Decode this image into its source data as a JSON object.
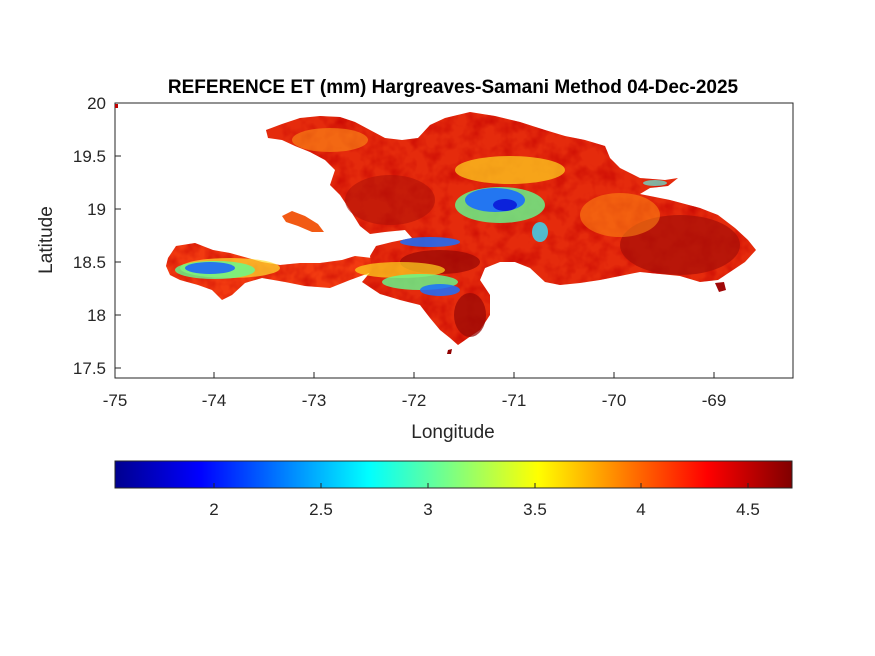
{
  "map": {
    "title": "REFERENCE ET (mm) Hargreaves-Samani Method  04-Dec-2025",
    "xlabel": "Longitude",
    "ylabel": "Latitude",
    "xlim": [
      -75,
      -68.2
    ],
    "ylim": [
      17.4,
      20
    ],
    "xticks": [
      "-75",
      "-74",
      "-73",
      "-72",
      "-71",
      "-70",
      "-69"
    ],
    "yticks": [
      "20",
      "19.5",
      "19",
      "18.5",
      "18",
      "17.5"
    ],
    "region": "Hispaniola"
  },
  "colorbar": {
    "colormap": "jet",
    "range": [
      1.55,
      4.7
    ],
    "ticks": [
      "2",
      "2.5",
      "3",
      "3.5",
      "4",
      "4.5"
    ]
  }
}
